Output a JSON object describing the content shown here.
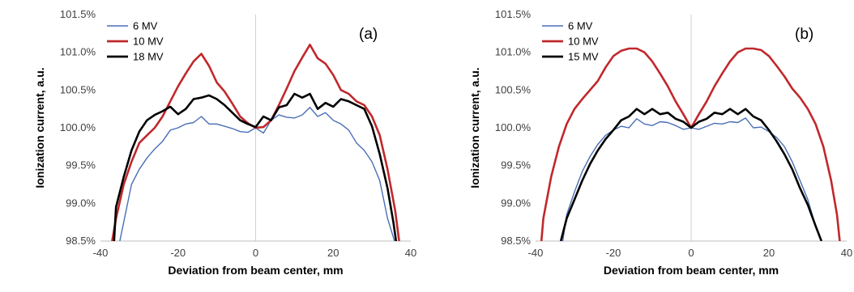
{
  "chart_data": [
    {
      "type": "line",
      "panel_label": "(a)",
      "xlabel": "Deviation from beam center, mm",
      "ylabel": "Ionization current, a.u.",
      "xlim": [
        -40,
        40
      ],
      "ylim": [
        98.5,
        101.5
      ],
      "xticks": [
        -40,
        -20,
        0,
        20,
        40
      ],
      "yticks": [
        98.5,
        99.0,
        99.5,
        100.0,
        100.5,
        101.0,
        101.5
      ],
      "ytick_labels": [
        "98.5%",
        "99.0%",
        "99.5%",
        "100.0%",
        "100.5%",
        "101.0%",
        "101.5%"
      ],
      "grid": "vertical-at-zero",
      "legend_position": "top-left",
      "series": [
        {
          "name": "6 MV",
          "color": "#4a6fb5",
          "x": [
            -35,
            -34,
            -32,
            -30,
            -28,
            -26,
            -24,
            -22,
            -20,
            -18,
            -16,
            -14,
            -12,
            -10,
            -8,
            -6,
            -4,
            -2,
            0,
            2,
            4,
            6,
            8,
            10,
            12,
            14,
            16,
            18,
            20,
            22,
            24,
            26,
            28,
            30,
            32,
            34,
            35.8
          ],
          "y": [
            98.5,
            98.75,
            99.25,
            99.45,
            99.6,
            99.72,
            99.82,
            99.97,
            100.0,
            100.05,
            100.07,
            100.15,
            100.05,
            100.05,
            100.02,
            99.99,
            99.95,
            99.94,
            100.0,
            99.93,
            100.1,
            100.17,
            100.14,
            100.13,
            100.17,
            100.27,
            100.15,
            100.2,
            100.1,
            100.05,
            99.97,
            99.8,
            99.7,
            99.55,
            99.3,
            98.8,
            98.5
          ]
        },
        {
          "name": "10 MV",
          "color": "#c0282b",
          "x": [
            -37,
            -36,
            -34,
            -32,
            -30,
            -28,
            -26,
            -24,
            -22,
            -20,
            -18,
            -16,
            -14,
            -12,
            -10,
            -8,
            -6,
            -4,
            -2,
            0,
            2,
            4,
            6,
            8,
            10,
            12,
            14,
            16,
            18,
            20,
            22,
            24,
            26,
            28,
            30,
            32,
            34,
            36,
            37
          ],
          "y": [
            98.5,
            98.8,
            99.25,
            99.55,
            99.8,
            99.9,
            100.0,
            100.15,
            100.35,
            100.55,
            100.72,
            100.88,
            100.98,
            100.82,
            100.6,
            100.48,
            100.32,
            100.15,
            100.06,
            100.0,
            100.01,
            100.1,
            100.3,
            100.52,
            100.75,
            100.93,
            101.1,
            100.92,
            100.85,
            100.7,
            100.5,
            100.45,
            100.35,
            100.3,
            100.15,
            99.9,
            99.45,
            98.9,
            98.5
          ]
        },
        {
          "name": "18 MV",
          "color": "#000000",
          "x": [
            -36.5,
            -36,
            -34,
            -32,
            -30,
            -28,
            -26,
            -24,
            -22,
            -20,
            -18,
            -16,
            -14,
            -12,
            -10,
            -8,
            -6,
            -4,
            -2,
            0,
            2,
            4,
            6,
            8,
            10,
            12,
            14,
            16,
            18,
            20,
            22,
            24,
            26,
            28,
            30,
            32,
            34,
            35.5,
            36.2
          ],
          "y": [
            98.5,
            98.95,
            99.35,
            99.7,
            99.95,
            100.1,
            100.17,
            100.22,
            100.28,
            100.18,
            100.25,
            100.38,
            100.4,
            100.43,
            100.38,
            100.3,
            100.2,
            100.1,
            100.05,
            100.01,
            100.15,
            100.1,
            100.27,
            100.3,
            100.45,
            100.4,
            100.45,
            100.25,
            100.33,
            100.28,
            100.38,
            100.35,
            100.3,
            100.25,
            100.02,
            99.65,
            99.2,
            98.75,
            98.5
          ]
        }
      ]
    },
    {
      "type": "line",
      "panel_label": "(b)",
      "xlabel": "Deviation from beam center, mm",
      "ylabel": "Ionization current, a.u.",
      "xlim": [
        -40,
        40
      ],
      "ylim": [
        98.5,
        101.5
      ],
      "xticks": [
        -40,
        -20,
        0,
        20,
        40
      ],
      "yticks": [
        98.5,
        99.0,
        99.5,
        100.0,
        100.5,
        101.0,
        101.5
      ],
      "ytick_labels": [
        "98.5%",
        "99.0%",
        "99.5%",
        "100.0%",
        "100.5%",
        "101.0%",
        "101.5%"
      ],
      "grid": "vertical-at-zero",
      "legend_position": "top-left",
      "series": [
        {
          "name": "6 MV",
          "color": "#4a6fb5",
          "x": [
            -33,
            -32,
            -30,
            -28,
            -26,
            -24,
            -22,
            -20,
            -18,
            -16,
            -14,
            -12,
            -10,
            -8,
            -6,
            -4,
            -2,
            0,
            2,
            4,
            6,
            8,
            10,
            12,
            14,
            16,
            18,
            20,
            22,
            24,
            26,
            28,
            30,
            32,
            33.5
          ],
          "y": [
            98.5,
            98.85,
            99.15,
            99.42,
            99.62,
            99.78,
            99.9,
            99.97,
            100.02,
            100.0,
            100.12,
            100.05,
            100.03,
            100.08,
            100.07,
            100.03,
            99.98,
            100.0,
            99.98,
            100.02,
            100.06,
            100.05,
            100.08,
            100.07,
            100.13,
            100.0,
            100.01,
            99.95,
            99.87,
            99.75,
            99.55,
            99.3,
            99.05,
            98.7,
            98.5
          ]
        },
        {
          "name": "10 MV",
          "color": "#c0282b",
          "x": [
            -38.5,
            -38,
            -36,
            -34,
            -32,
            -30,
            -28,
            -26,
            -24,
            -22,
            -20,
            -18,
            -16,
            -14,
            -12,
            -10,
            -8,
            -6,
            -4,
            -2,
            0,
            2,
            4,
            6,
            8,
            10,
            12,
            14,
            16,
            18,
            20,
            22,
            24,
            26,
            28,
            30,
            32,
            34,
            36,
            37.5,
            38.2
          ],
          "y": [
            98.5,
            98.8,
            99.35,
            99.75,
            100.05,
            100.25,
            100.38,
            100.5,
            100.62,
            100.8,
            100.95,
            101.02,
            101.05,
            101.05,
            101.0,
            100.88,
            100.72,
            100.55,
            100.35,
            100.18,
            100.0,
            100.18,
            100.35,
            100.55,
            100.72,
            100.88,
            101.0,
            101.05,
            101.05,
            101.03,
            100.95,
            100.82,
            100.68,
            100.52,
            100.4,
            100.25,
            100.05,
            99.75,
            99.3,
            98.85,
            98.5
          ]
        },
        {
          "name": "15 MV",
          "color": "#000000",
          "x": [
            -33.5,
            -32,
            -30,
            -28,
            -26,
            -24,
            -22,
            -20,
            -18,
            -16,
            -14,
            -12,
            -10,
            -8,
            -6,
            -4,
            -2,
            0,
            2,
            4,
            6,
            8,
            10,
            12,
            14,
            16,
            18,
            20,
            22,
            24,
            26,
            28,
            30,
            32,
            33.5
          ],
          "y": [
            98.5,
            98.8,
            99.05,
            99.3,
            99.52,
            99.7,
            99.85,
            99.97,
            100.1,
            100.15,
            100.25,
            100.18,
            100.25,
            100.18,
            100.2,
            100.12,
            100.08,
            100.0,
            100.08,
            100.12,
            100.2,
            100.18,
            100.25,
            100.18,
            100.25,
            100.15,
            100.1,
            99.97,
            99.82,
            99.65,
            99.45,
            99.2,
            98.98,
            98.7,
            98.5
          ]
        }
      ]
    }
  ]
}
